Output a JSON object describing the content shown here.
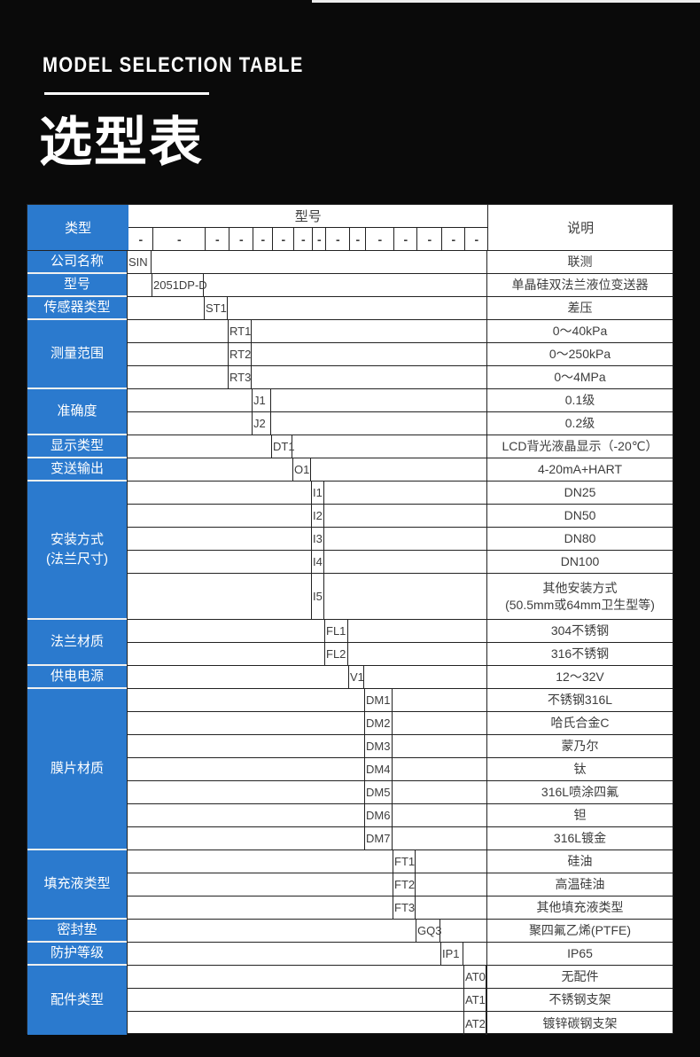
{
  "header": {
    "title_en": "MODEL SELECTION TABLE",
    "title_zh": "选型表"
  },
  "colors": {
    "accent_blue": "#2b7ace",
    "page_background": "#0a0a0a",
    "grid_line": "#222222",
    "label_separator": "#f0f0f0"
  },
  "table": {
    "header": {
      "type_label": "类型",
      "model_label": "型号",
      "desc_label": "说明",
      "dash": "-",
      "dash_count": 15
    },
    "groups": [
      {
        "label": "公司名称",
        "rows": [
          {
            "code": "SIN",
            "col": 1,
            "desc": "联测"
          }
        ]
      },
      {
        "label": "型号",
        "rows": [
          {
            "code": "2051DP-D",
            "col": 2,
            "desc": "单晶硅双法兰液位变送器"
          }
        ]
      },
      {
        "label": "传感器类型",
        "rows": [
          {
            "code": "ST1",
            "col": 3,
            "desc": "差压"
          }
        ]
      },
      {
        "label": "测量范围",
        "rows": [
          {
            "code": "RT1",
            "col": 4,
            "desc": "0～40kPa"
          },
          {
            "code": "RT2",
            "col": 4,
            "desc": "0～250kPa"
          },
          {
            "code": "RT3",
            "col": 4,
            "desc": "0～4MPa"
          }
        ]
      },
      {
        "label": "准确度",
        "rows": [
          {
            "code": "J1",
            "col": 5,
            "desc": "0.1级"
          },
          {
            "code": "J2",
            "col": 5,
            "desc": "0.2级"
          }
        ]
      },
      {
        "label": "显示类型",
        "rows": [
          {
            "code": "DT1",
            "col": 6,
            "desc": "LCD背光液晶显示（-20℃）"
          }
        ]
      },
      {
        "label": "变送输出",
        "rows": [
          {
            "code": "O1",
            "col": 7,
            "desc": "4-20mA+HART"
          }
        ]
      },
      {
        "label": "安装方式\n(法兰尺寸)",
        "rows": [
          {
            "code": "I1",
            "col": 8,
            "desc": "DN25"
          },
          {
            "code": "I2",
            "col": 8,
            "desc": "DN50"
          },
          {
            "code": "I3",
            "col": 8,
            "desc": "DN80"
          },
          {
            "code": "I4",
            "col": 8,
            "desc": "DN100"
          },
          {
            "code": "I5",
            "col": 8,
            "desc": "其他安装方式\n(50.5mm或64mm卫生型等)",
            "tall": true
          }
        ]
      },
      {
        "label": "法兰材质",
        "rows": [
          {
            "code": "FL1",
            "col": 9,
            "desc": "304不锈钢"
          },
          {
            "code": "FL2",
            "col": 9,
            "desc": "316不锈钢"
          }
        ]
      },
      {
        "label": "供电电源",
        "rows": [
          {
            "code": "V1",
            "col": 10,
            "desc": "12～32V"
          }
        ]
      },
      {
        "label": "膜片材质",
        "rows": [
          {
            "code": "DM1",
            "col": 11,
            "desc": "不锈钢316L"
          },
          {
            "code": "DM2",
            "col": 11,
            "desc": "哈氏合金C"
          },
          {
            "code": "DM3",
            "col": 11,
            "desc": "蒙乃尔"
          },
          {
            "code": "DM4",
            "col": 11,
            "desc": "钛"
          },
          {
            "code": "DM5",
            "col": 11,
            "desc": "316L喷涂四氟"
          },
          {
            "code": "DM6",
            "col": 11,
            "desc": "钽"
          },
          {
            "code": "DM7",
            "col": 11,
            "desc": "316L镀金"
          }
        ]
      },
      {
        "label": "填充液类型",
        "rows": [
          {
            "code": "FT1",
            "col": 12,
            "desc": "硅油"
          },
          {
            "code": "FT2",
            "col": 12,
            "desc": "高温硅油"
          },
          {
            "code": "FT3",
            "col": 12,
            "desc": "其他填充液类型"
          }
        ]
      },
      {
        "label": "密封垫",
        "rows": [
          {
            "code": "GQ3",
            "col": 13,
            "desc": "聚四氟乙烯(PTFE)"
          }
        ]
      },
      {
        "label": "防护等级",
        "rows": [
          {
            "code": "IP1",
            "col": 14,
            "desc": "IP65"
          }
        ]
      },
      {
        "label": "配件类型",
        "rows": [
          {
            "code": "AT0",
            "col": 15,
            "desc": "无配件"
          },
          {
            "code": "AT1",
            "col": 15,
            "desc": "不锈钢支架"
          },
          {
            "code": "AT2",
            "col": 15,
            "desc": "镀锌碳钢支架"
          }
        ]
      }
    ]
  }
}
